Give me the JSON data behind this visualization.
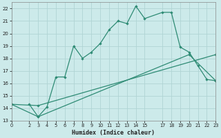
{
  "xlabel": "Humidex (Indice chaleur)",
  "bg_color": "#cceaea",
  "grid_color": "#b0d4d4",
  "line_color": "#2e8b74",
  "xlim": [
    0,
    23
  ],
  "ylim": [
    13,
    22.5
  ],
  "xticks": [
    0,
    2,
    3,
    4,
    5,
    6,
    7,
    8,
    9,
    10,
    11,
    12,
    13,
    14,
    15,
    17,
    18,
    19,
    20,
    21,
    22,
    23
  ],
  "yticks": [
    13,
    14,
    15,
    16,
    17,
    18,
    19,
    20,
    21,
    22
  ],
  "line1_x": [
    2,
    3,
    4,
    5,
    6,
    7,
    8,
    9,
    10,
    11,
    12,
    13,
    14,
    15,
    17,
    18,
    19,
    20,
    21,
    22,
    23
  ],
  "line1_y": [
    14.3,
    13.3,
    14.1,
    16.5,
    16.5,
    19.0,
    18.0,
    18.5,
    19.2,
    20.3,
    21.0,
    20.8,
    22.2,
    21.2,
    21.7,
    21.7,
    18.9,
    18.5,
    17.4,
    16.3,
    16.2
  ],
  "line2_x": [
    0,
    3,
    23
  ],
  "line2_y": [
    14.3,
    14.2,
    18.3
  ],
  "line3_x": [
    0,
    3,
    20,
    23
  ],
  "line3_y": [
    14.3,
    13.3,
    18.3,
    16.2
  ]
}
